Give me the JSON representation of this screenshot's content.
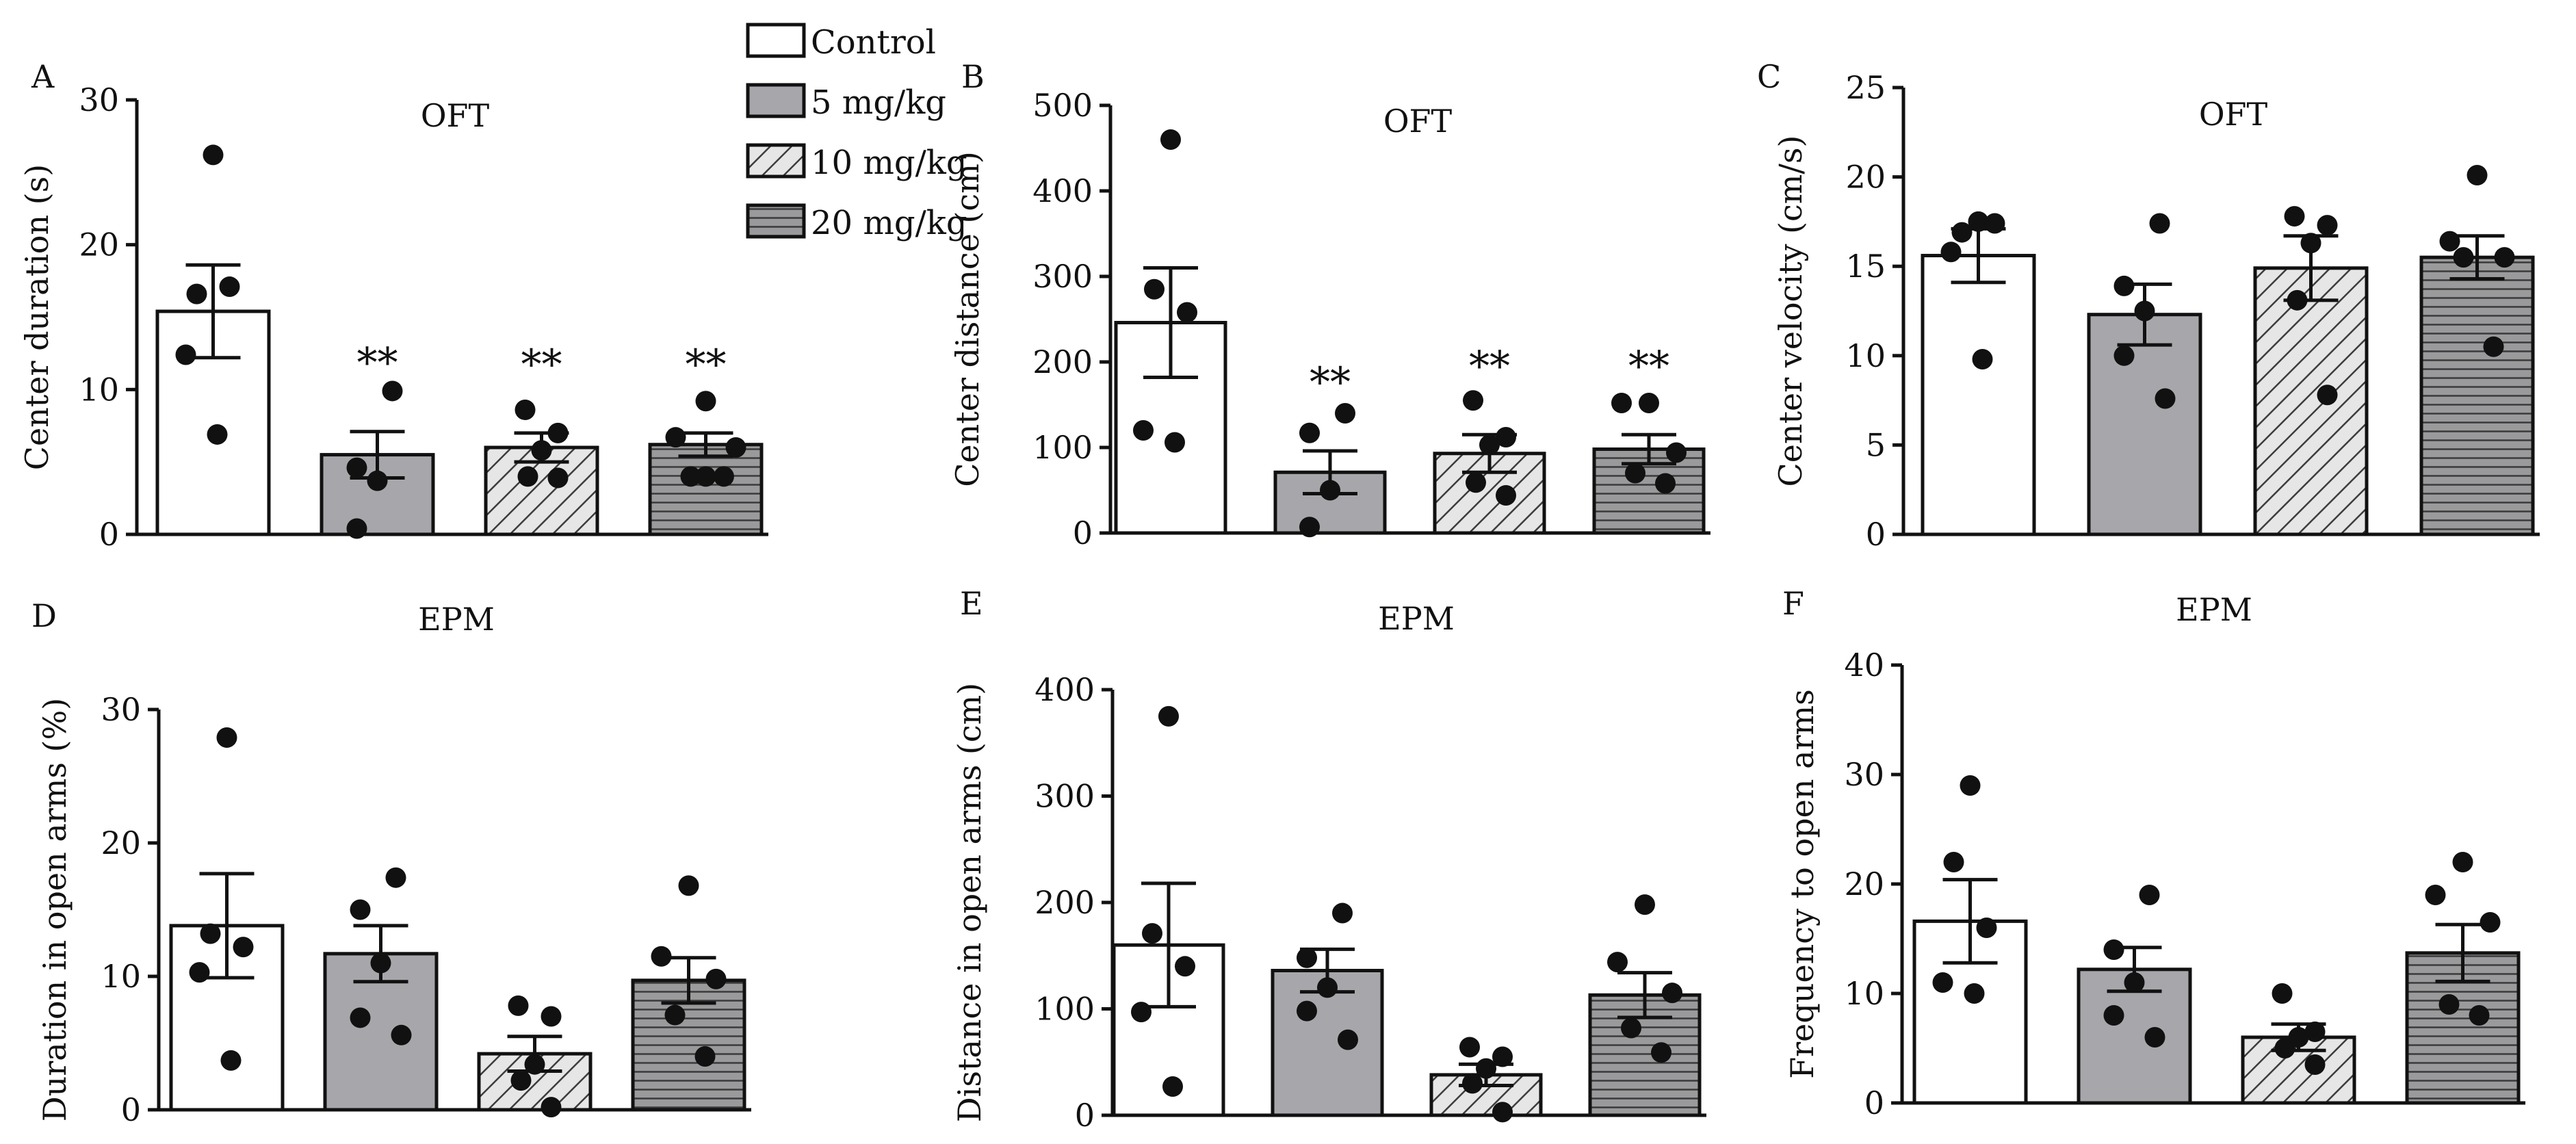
{
  "legend": {
    "items": [
      {
        "label": "Control",
        "pattern": "white"
      },
      {
        "label": "5 mg/kg",
        "pattern": "gray"
      },
      {
        "label": "10 mg/kg",
        "pattern": "diagonal"
      },
      {
        "label": "20 mg/kg",
        "pattern": "horizontal"
      }
    ]
  },
  "colors": {
    "white_fill": "#ffffff",
    "gray_fill": "#a7a7ab",
    "dark_fill": "#8f8f92",
    "ink": "#111111"
  },
  "chart_data": [
    {
      "panel": "A",
      "title": "OFT",
      "type": "bar",
      "ylabel": "Center duration (s)",
      "ylim": [
        0,
        30
      ],
      "yticks": [
        0,
        10,
        20,
        30
      ],
      "categories": [
        "Control",
        "5 mg/kg",
        "10 mg/kg",
        "20 mg/kg"
      ],
      "values": [
        15.4,
        5.5,
        6.0,
        6.2
      ],
      "sem": [
        3.2,
        1.6,
        1.0,
        0.8
      ],
      "points": [
        [
          26.2,
          16.6,
          17.1,
          12.4,
          6.9
        ],
        [
          9.9,
          4.6,
          3.7,
          0.4
        ],
        [
          8.6,
          7.0,
          5.8,
          4.0,
          3.9
        ],
        [
          9.2,
          6.7,
          6.0,
          4.0,
          4.0,
          4.0
        ]
      ],
      "annotations": [
        "",
        "**",
        "**",
        "**"
      ]
    },
    {
      "panel": "B",
      "title": "OFT",
      "type": "bar",
      "ylabel": "Center distance (cm)",
      "ylim": [
        0,
        500
      ],
      "yticks": [
        0,
        100,
        200,
        300,
        400,
        500
      ],
      "categories": [
        "Control",
        "5 mg/kg",
        "10 mg/kg",
        "20 mg/kg"
      ],
      "values": [
        246,
        71,
        93,
        98
      ],
      "sem": [
        64,
        25,
        22,
        17
      ],
      "points": [
        [
          460,
          285,
          258,
          120,
          106
        ],
        [
          140,
          117,
          50,
          7
        ],
        [
          155,
          112,
          103,
          59,
          44
        ],
        [
          152,
          152,
          94,
          70,
          58
        ]
      ],
      "annotations": [
        "",
        "**",
        "**",
        "**"
      ]
    },
    {
      "panel": "C",
      "title": "OFT",
      "type": "bar",
      "ylabel": "Center velocity (cm/s)",
      "ylim": [
        0,
        25
      ],
      "yticks": [
        0,
        5,
        10,
        15,
        20,
        25
      ],
      "categories": [
        "Control",
        "5 mg/kg",
        "10 mg/kg",
        "20 mg/kg"
      ],
      "values": [
        15.6,
        12.3,
        14.9,
        15.5
      ],
      "sem": [
        1.5,
        1.7,
        1.8,
        1.2
      ],
      "points": [
        [
          17.5,
          16.9,
          17.4,
          15.8,
          9.8
        ],
        [
          17.4,
          13.9,
          12.5,
          10.0,
          7.6
        ],
        [
          17.8,
          17.3,
          16.3,
          13.1,
          7.8
        ],
        [
          20.1,
          16.4,
          15.5,
          15.5,
          10.5
        ]
      ],
      "annotations": [
        "",
        "",
        "",
        ""
      ]
    },
    {
      "panel": "D",
      "title": "EPM",
      "type": "bar",
      "ylabel": "Duration in open arms (%)",
      "ylim": [
        0,
        30
      ],
      "yticks": [
        0,
        10,
        20,
        30
      ],
      "categories": [
        "Control",
        "5 mg/kg",
        "10 mg/kg",
        "20 mg/kg"
      ],
      "values": [
        13.8,
        11.7,
        4.2,
        9.7
      ],
      "sem": [
        3.9,
        2.1,
        1.3,
        1.7
      ],
      "points": [
        [
          27.9,
          13.2,
          12.2,
          10.3,
          3.7
        ],
        [
          17.4,
          15.0,
          11.0,
          6.9,
          5.6
        ],
        [
          7.8,
          7.0,
          3.4,
          2.2,
          0.2
        ],
        [
          16.8,
          11.5,
          9.8,
          7.1,
          4.0
        ]
      ],
      "annotations": [
        "",
        "",
        "",
        ""
      ]
    },
    {
      "panel": "E",
      "title": "EPM",
      "type": "bar",
      "ylabel": "Distance in open arms (cm)",
      "ylim": [
        0,
        400
      ],
      "yticks": [
        0,
        100,
        200,
        300,
        400
      ],
      "categories": [
        "Control",
        "5 mg/kg",
        "10 mg/kg",
        "20 mg/kg"
      ],
      "values": [
        160,
        136,
        38,
        113
      ],
      "sem": [
        58,
        20,
        10,
        21
      ],
      "points": [
        [
          375,
          171,
          140,
          97,
          27
        ],
        [
          190,
          148,
          120,
          98,
          71
        ],
        [
          64,
          55,
          44,
          30,
          3
        ],
        [
          198,
          144,
          115,
          82,
          59
        ]
      ],
      "annotations": [
        "",
        "",
        "",
        ""
      ]
    },
    {
      "panel": "F",
      "title": "EPM",
      "type": "bar",
      "ylabel": "Frequency to open arms",
      "ylim": [
        0,
        40
      ],
      "yticks": [
        0,
        10,
        20,
        30,
        40
      ],
      "categories": [
        "Control",
        "5 mg/kg",
        "10 mg/kg",
        "20 mg/kg"
      ],
      "values": [
        16.6,
        12.2,
        6.0,
        13.7
      ],
      "sem": [
        3.8,
        2.0,
        1.2,
        2.6
      ],
      "points": [
        [
          29,
          22,
          16,
          11,
          10
        ],
        [
          19,
          14,
          11,
          8,
          6
        ],
        [
          10,
          6.5,
          6,
          5,
          3.5
        ],
        [
          22,
          19,
          16.5,
          9,
          8
        ]
      ],
      "annotations": [
        "",
        "",
        "",
        ""
      ]
    }
  ]
}
